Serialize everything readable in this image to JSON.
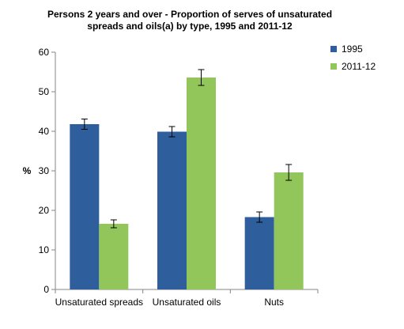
{
  "chart_data": {
    "type": "bar",
    "title_lines": [
      "Persons 2 years and over - Proportion of serves of unsaturated",
      "spreads and oils(a) by type, 1995 and 2011-12"
    ],
    "ylabel": "%",
    "xlabel": "",
    "ylim": [
      0,
      60
    ],
    "yticks": [
      0,
      10,
      20,
      30,
      40,
      50,
      60
    ],
    "grid": false,
    "legend_position": "top-right",
    "categories": [
      "Unsaturated spreads",
      "Unsaturated oils",
      "Nuts"
    ],
    "series": [
      {
        "name": "1995",
        "color": "#2E5E9B",
        "values": [
          41.8,
          39.9,
          18.3
        ],
        "error_low": [
          40.5,
          38.6,
          17.0
        ],
        "error_high": [
          43.1,
          41.2,
          19.6
        ]
      },
      {
        "name": "2011-12",
        "color": "#92C65A",
        "values": [
          16.6,
          53.6,
          29.6
        ],
        "error_low": [
          15.6,
          51.6,
          27.6
        ],
        "error_high": [
          17.6,
          55.6,
          31.6
        ]
      }
    ]
  }
}
